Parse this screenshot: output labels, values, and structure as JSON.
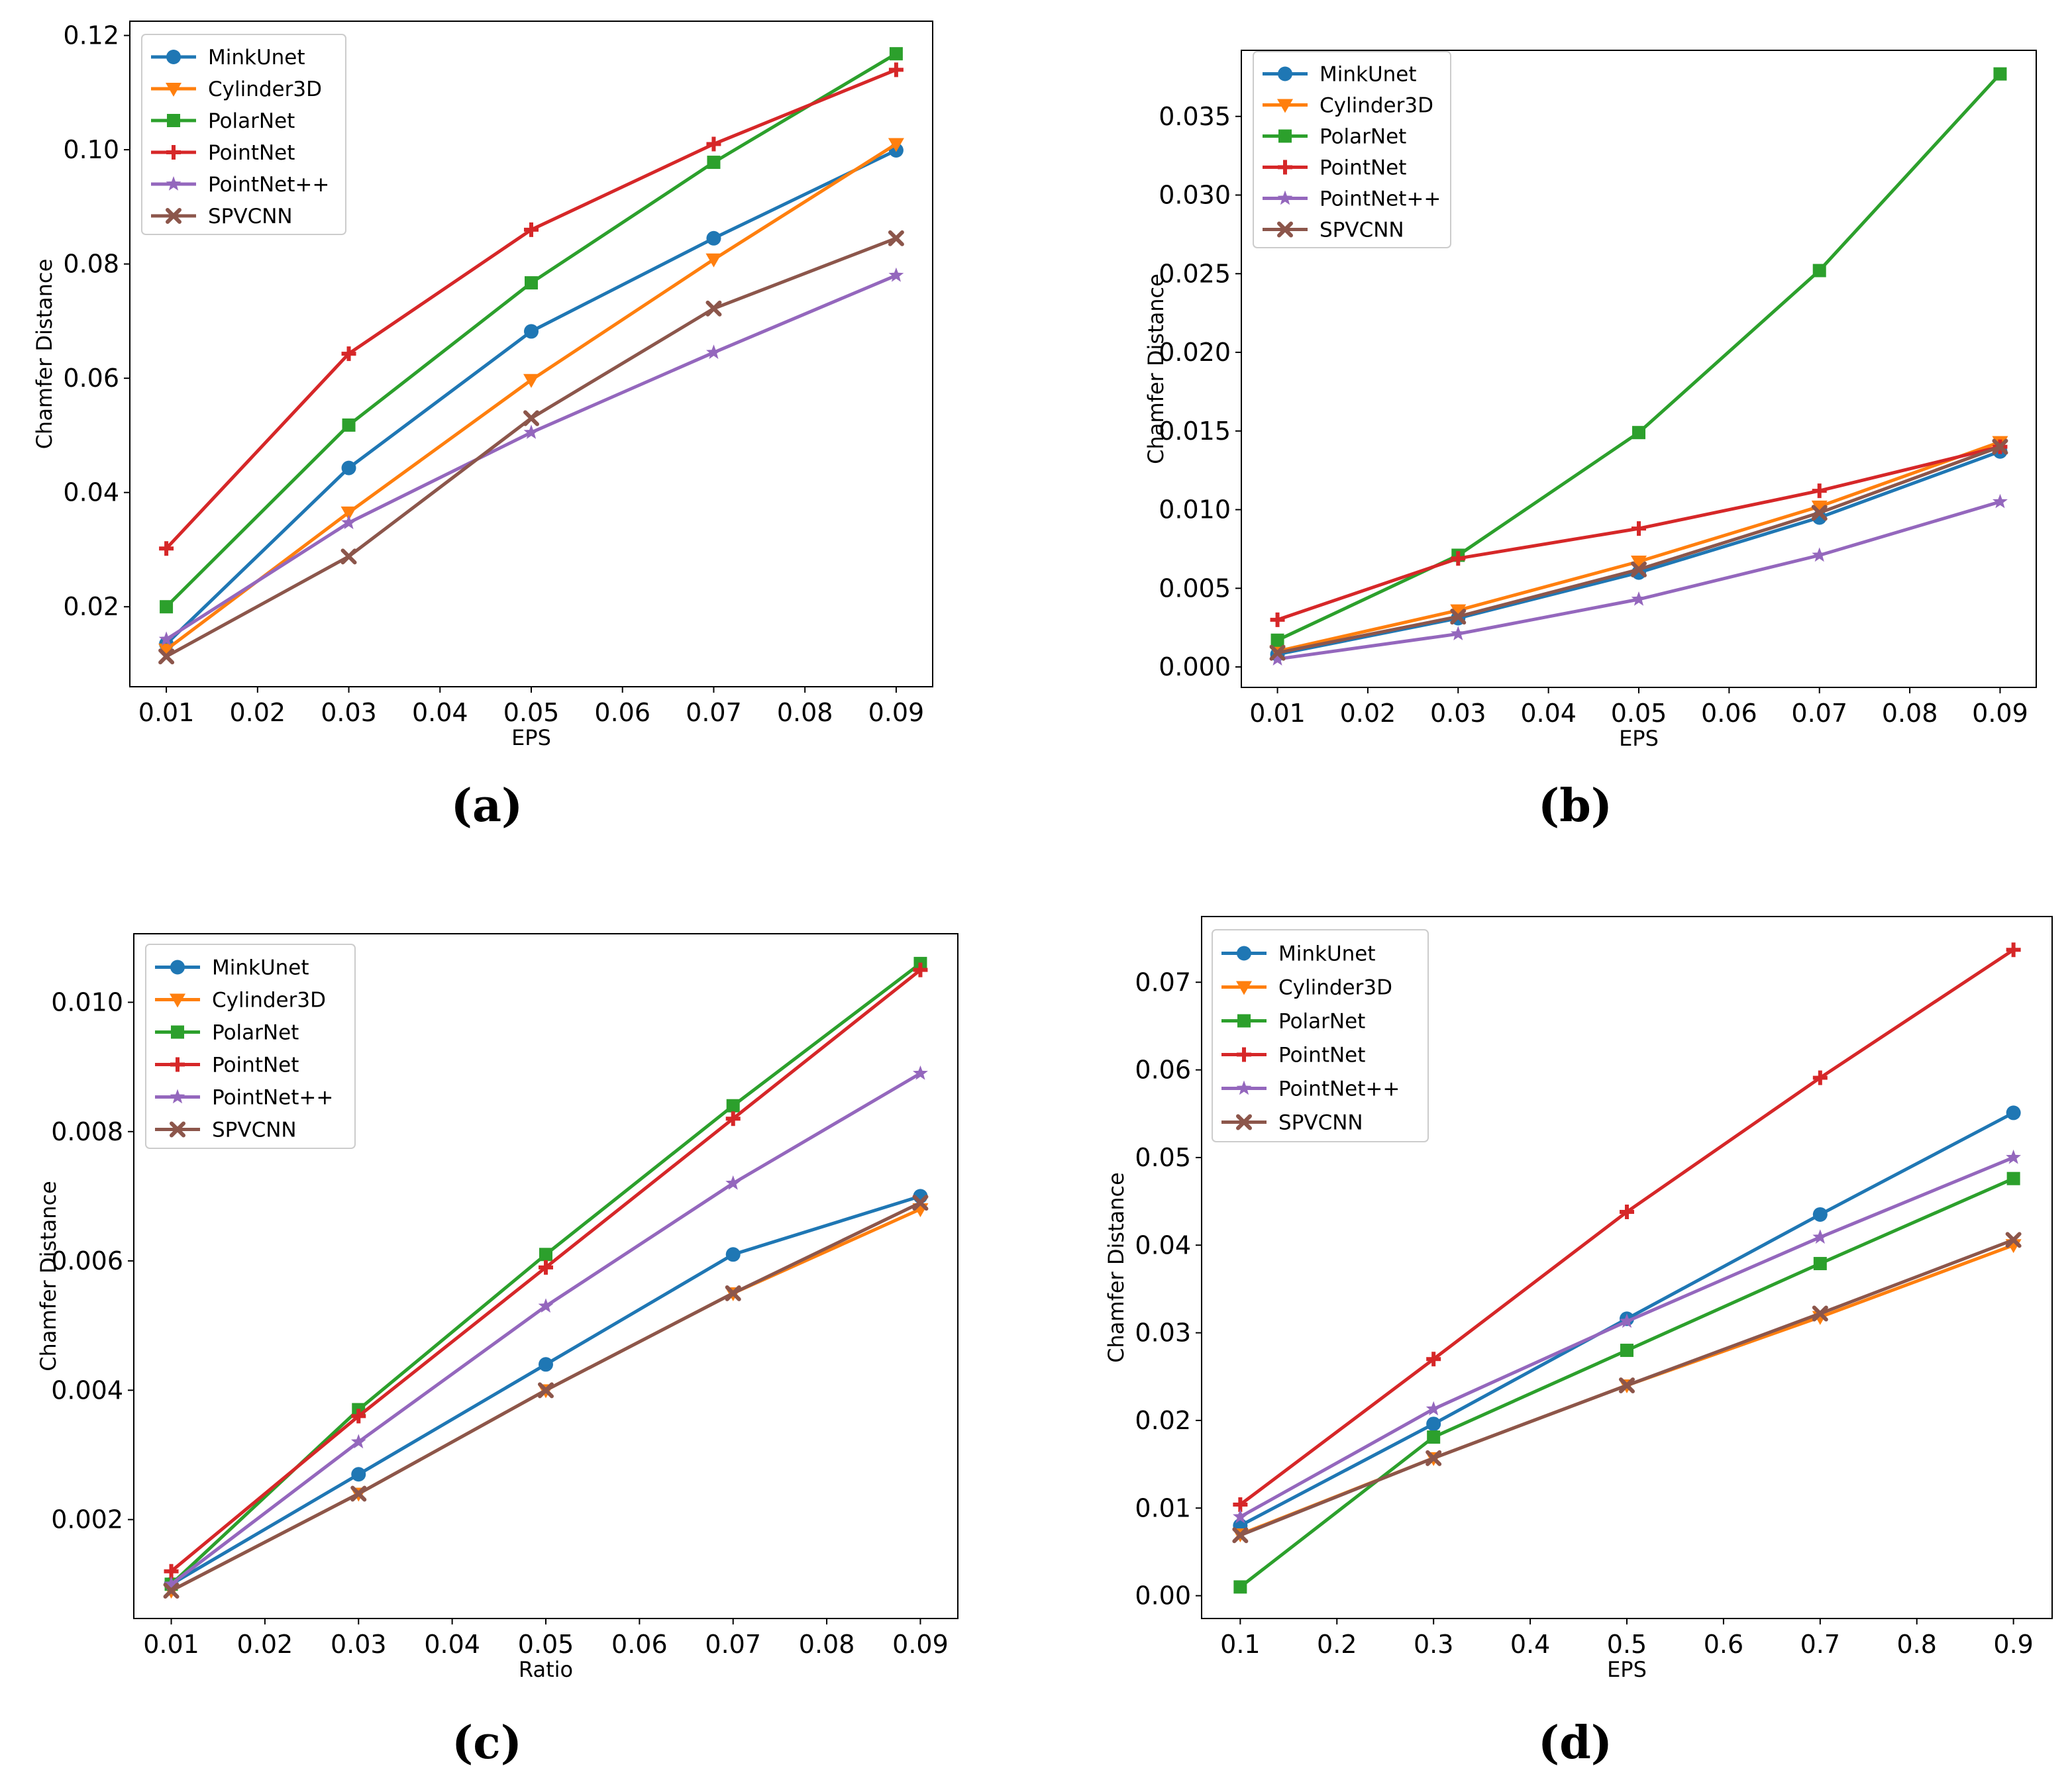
{
  "colors": {
    "MinkUnet": "#1f77b4",
    "Cylinder3D": "#ff7f0e",
    "PolarNet": "#2ca02c",
    "PointNet": "#d62728",
    "PointNet++": "#9467bd",
    "SPVCNN": "#8c564b"
  },
  "markers": {
    "MinkUnet": "circle",
    "Cylinder3D": "triangle-down",
    "PolarNet": "square",
    "PointNet": "plus",
    "PointNet++": "star",
    "SPVCNN": "x"
  },
  "chart_data": [
    {
      "type": "line",
      "caption": "(a)",
      "xlabel": "EPS",
      "ylabel": "Chamfer Distance",
      "x": [
        0.01,
        0.03,
        0.05,
        0.07,
        0.09
      ],
      "xlim": [
        0.006,
        0.094
      ],
      "ylim": [
        0.006,
        0.1225
      ],
      "xticks": [
        "0.01",
        "0.02",
        "0.03",
        "0.04",
        "0.05",
        "0.06",
        "0.07",
        "0.08",
        "0.09"
      ],
      "xtick_values": [
        0.01,
        0.02,
        0.03,
        0.04,
        0.05,
        0.06,
        0.07,
        0.08,
        0.09
      ],
      "yticks": [
        "0.02",
        "0.04",
        "0.06",
        "0.08",
        "0.10",
        "0.12"
      ],
      "ytick_values": [
        0.02,
        0.04,
        0.06,
        0.08,
        0.1,
        0.12
      ],
      "legend": "top-left",
      "series": [
        {
          "name": "MinkUnet",
          "values": [
            0.0135,
            0.0443,
            0.0682,
            0.0845,
            0.0999
          ]
        },
        {
          "name": "Cylinder3D",
          "values": [
            0.0125,
            0.0365,
            0.0597,
            0.0808,
            0.101
          ]
        },
        {
          "name": "PolarNet",
          "values": [
            0.02,
            0.0518,
            0.0767,
            0.0978,
            0.1168
          ]
        },
        {
          "name": "PointNet",
          "values": [
            0.0302,
            0.0643,
            0.086,
            0.101,
            0.114
          ]
        },
        {
          "name": "PointNet++",
          "values": [
            0.0143,
            0.0347,
            0.0505,
            0.0645,
            0.078
          ]
        },
        {
          "name": "SPVCNN",
          "values": [
            0.0113,
            0.0288,
            0.053,
            0.0722,
            0.0845
          ]
        }
      ]
    },
    {
      "type": "line",
      "caption": "(b)",
      "xlabel": "EPS",
      "ylabel": "Chamfer Distance",
      "x": [
        0.01,
        0.03,
        0.05,
        0.07,
        0.09
      ],
      "xlim": [
        0.006,
        0.094
      ],
      "ylim": [
        -0.0013,
        0.0392
      ],
      "xticks": [
        "0.01",
        "0.02",
        "0.03",
        "0.04",
        "0.05",
        "0.06",
        "0.07",
        "0.08",
        "0.09"
      ],
      "xtick_values": [
        0.01,
        0.02,
        0.03,
        0.04,
        0.05,
        0.06,
        0.07,
        0.08,
        0.09
      ],
      "yticks": [
        "0.000",
        "0.005",
        "0.010",
        "0.015",
        "0.020",
        "0.025",
        "0.030",
        "0.035"
      ],
      "ytick_values": [
        0.0,
        0.005,
        0.01,
        0.015,
        0.02,
        0.025,
        0.03,
        0.035
      ],
      "legend": "top-left",
      "series": [
        {
          "name": "MinkUnet",
          "values": [
            0.0008,
            0.0031,
            0.006,
            0.0095,
            0.0137
          ]
        },
        {
          "name": "Cylinder3D",
          "values": [
            0.001,
            0.0036,
            0.0067,
            0.0102,
            0.0143
          ]
        },
        {
          "name": "PolarNet",
          "values": [
            0.0017,
            0.0071,
            0.0149,
            0.0252,
            0.0377
          ]
        },
        {
          "name": "PointNet",
          "values": [
            0.003,
            0.0069,
            0.0088,
            0.0112,
            0.014
          ]
        },
        {
          "name": "PointNet++",
          "values": [
            0.0005,
            0.0021,
            0.0043,
            0.0071,
            0.0105
          ]
        },
        {
          "name": "SPVCNN",
          "values": [
            0.0009,
            0.0032,
            0.0062,
            0.0098,
            0.014
          ]
        }
      ]
    },
    {
      "type": "line",
      "caption": "(c)",
      "xlabel": "Ratio",
      "ylabel": "Chamfer Distance",
      "x": [
        0.01,
        0.03,
        0.05,
        0.07,
        0.09
      ],
      "xlim": [
        0.006,
        0.094
      ],
      "ylim": [
        0.00047,
        0.01106
      ],
      "xticks": [
        "0.01",
        "0.02",
        "0.03",
        "0.04",
        "0.05",
        "0.06",
        "0.07",
        "0.08",
        "0.09"
      ],
      "xtick_values": [
        0.01,
        0.02,
        0.03,
        0.04,
        0.05,
        0.06,
        0.07,
        0.08,
        0.09
      ],
      "yticks": [
        "0.002",
        "0.004",
        "0.006",
        "0.008",
        "0.010"
      ],
      "ytick_values": [
        0.002,
        0.004,
        0.006,
        0.008,
        0.01
      ],
      "legend": "top-left",
      "series": [
        {
          "name": "MinkUnet",
          "values": [
            0.001,
            0.0027,
            0.0044,
            0.0061,
            0.007
          ]
        },
        {
          "name": "Cylinder3D",
          "values": [
            0.0009,
            0.0024,
            0.004,
            0.0055,
            0.0068
          ]
        },
        {
          "name": "PolarNet",
          "values": [
            0.001,
            0.0037,
            0.0061,
            0.0084,
            0.0106
          ]
        },
        {
          "name": "PointNet",
          "values": [
            0.0012,
            0.0036,
            0.0059,
            0.0082,
            0.0105
          ]
        },
        {
          "name": "PointNet++",
          "values": [
            0.001,
            0.0032,
            0.0053,
            0.0072,
            0.0089
          ]
        },
        {
          "name": "SPVCNN",
          "values": [
            0.0009,
            0.0024,
            0.004,
            0.0055,
            0.0069
          ]
        }
      ]
    },
    {
      "type": "line",
      "caption": "(d)",
      "xlabel": "EPS",
      "ylabel": "Chamfer Distance",
      "x": [
        0.1,
        0.3,
        0.5,
        0.7,
        0.9
      ],
      "xlim": [
        0.06,
        0.94
      ],
      "ylim": [
        -0.0026,
        0.0775
      ],
      "xticks": [
        "0.1",
        "0.2",
        "0.3",
        "0.4",
        "0.5",
        "0.6",
        "0.7",
        "0.8",
        "0.9"
      ],
      "xtick_values": [
        0.1,
        0.2,
        0.3,
        0.4,
        0.5,
        0.6,
        0.7,
        0.8,
        0.9
      ],
      "yticks": [
        "0.00",
        "0.01",
        "0.02",
        "0.03",
        "0.04",
        "0.05",
        "0.06",
        "0.07"
      ],
      "ytick_values": [
        0.0,
        0.01,
        0.02,
        0.03,
        0.04,
        0.05,
        0.06,
        0.07
      ],
      "legend": "top-left",
      "series": [
        {
          "name": "MinkUnet",
          "values": [
            0.008,
            0.0196,
            0.0316,
            0.0435,
            0.0551
          ]
        },
        {
          "name": "Cylinder3D",
          "values": [
            0.007,
            0.0157,
            0.024,
            0.0318,
            0.04
          ]
        },
        {
          "name": "PolarNet",
          "values": [
            0.001,
            0.0181,
            0.028,
            0.0379,
            0.0476
          ]
        },
        {
          "name": "PointNet",
          "values": [
            0.0104,
            0.027,
            0.0438,
            0.0591,
            0.0737
          ]
        },
        {
          "name": "PointNet++",
          "values": [
            0.009,
            0.0213,
            0.0313,
            0.0409,
            0.05
          ]
        },
        {
          "name": "SPVCNN",
          "values": [
            0.0069,
            0.0157,
            0.024,
            0.0322,
            0.0406
          ]
        }
      ]
    }
  ]
}
